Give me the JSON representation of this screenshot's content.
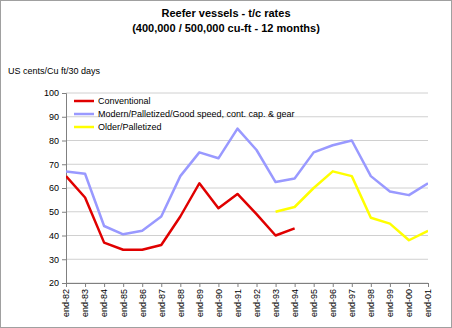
{
  "chart_data": {
    "type": "line",
    "title": "Reefer vessels - t/c rates",
    "subtitle": "(400,000 / 500,000 cu-ft - 12 months)",
    "y_label": "US cents/Cu ft/30 days",
    "categories": [
      "end-82",
      "end-83",
      "end-84",
      "end-85",
      "end-86",
      "end-87",
      "end-88",
      "end-89",
      "end-90",
      "end-91",
      "end-92",
      "end-93",
      "end-94",
      "end-95",
      "end-96",
      "end-97",
      "end-98",
      "end-99",
      "end-00",
      "end-01"
    ],
    "series": [
      {
        "name": "Conventional",
        "color": "#e00000",
        "values": [
          65,
          56,
          37,
          34,
          34,
          36,
          48,
          62,
          51.5,
          57.5,
          49,
          40,
          43,
          null,
          null,
          null,
          null,
          null,
          null,
          null
        ]
      },
      {
        "name": "Modern/Palletized/Good speed, cont. cap. & gear",
        "color": "#9999ff",
        "values": [
          67,
          66,
          44,
          40.5,
          42,
          48,
          65,
          75,
          72.5,
          85,
          76,
          62.5,
          64,
          75,
          78,
          80,
          65,
          58.5,
          57,
          62
        ]
      },
      {
        "name": "Older/Palletized",
        "color": "#ffff00",
        "values": [
          null,
          null,
          null,
          null,
          null,
          null,
          null,
          null,
          null,
          null,
          null,
          50,
          52,
          60,
          67,
          65,
          47.5,
          45,
          38,
          42
        ]
      }
    ],
    "ylim": [
      20,
      100
    ],
    "yticks": [
      20,
      30,
      40,
      50,
      60,
      70,
      80,
      90,
      100
    ],
    "grid": true,
    "legend": "upper left"
  }
}
